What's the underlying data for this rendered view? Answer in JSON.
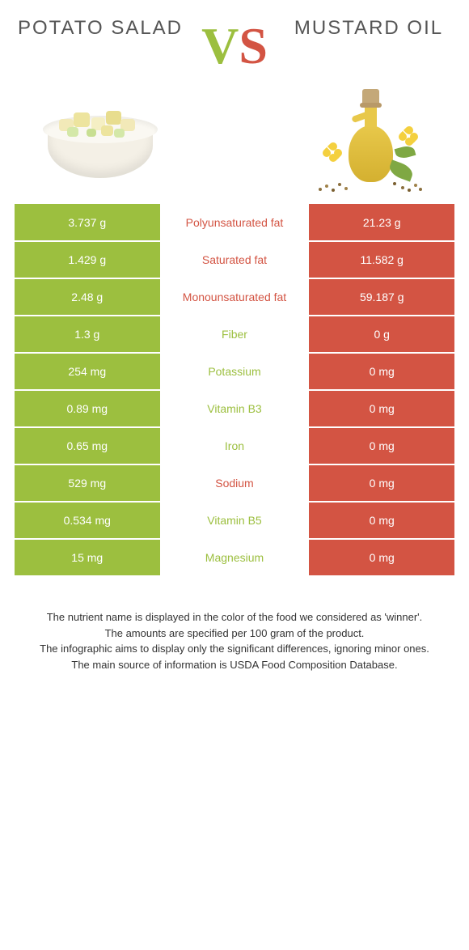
{
  "header": {
    "left_title": "Potato salad",
    "right_title": "Mustard oil",
    "vs_v": "V",
    "vs_s": "S"
  },
  "colors": {
    "green": "#9cbf3f",
    "red": "#d35443",
    "white": "#ffffff",
    "text_gray": "#555555"
  },
  "table": {
    "left_bg": "green-bg",
    "right_bg": "red-bg",
    "rows": [
      {
        "left": "3.737 g",
        "label": "Polyunsaturated fat",
        "label_color": "red-txt",
        "right": "21.23 g"
      },
      {
        "left": "1.429 g",
        "label": "Saturated fat",
        "label_color": "red-txt",
        "right": "11.582 g"
      },
      {
        "left": "2.48 g",
        "label": "Monounsaturated fat",
        "label_color": "red-txt",
        "right": "59.187 g"
      },
      {
        "left": "1.3 g",
        "label": "Fiber",
        "label_color": "green-txt",
        "right": "0 g"
      },
      {
        "left": "254 mg",
        "label": "Potassium",
        "label_color": "green-txt",
        "right": "0 mg"
      },
      {
        "left": "0.89 mg",
        "label": "Vitamin B3",
        "label_color": "green-txt",
        "right": "0 mg"
      },
      {
        "left": "0.65 mg",
        "label": "Iron",
        "label_color": "green-txt",
        "right": "0 mg"
      },
      {
        "left": "529 mg",
        "label": "Sodium",
        "label_color": "red-txt",
        "right": "0 mg"
      },
      {
        "left": "0.534 mg",
        "label": "Vitamin B5",
        "label_color": "green-txt",
        "right": "0 mg"
      },
      {
        "left": "15 mg",
        "label": "Magnesium",
        "label_color": "green-txt",
        "right": "0 mg"
      }
    ]
  },
  "footnotes": {
    "line1": "The nutrient name is displayed in the color of the food we considered as 'winner'.",
    "line2": "The amounts are specified per 100 gram of the product.",
    "line3": "The infographic aims to display only the significant differences, ignoring minor ones.",
    "line4": "The main source of information is USDA Food Composition Database."
  }
}
